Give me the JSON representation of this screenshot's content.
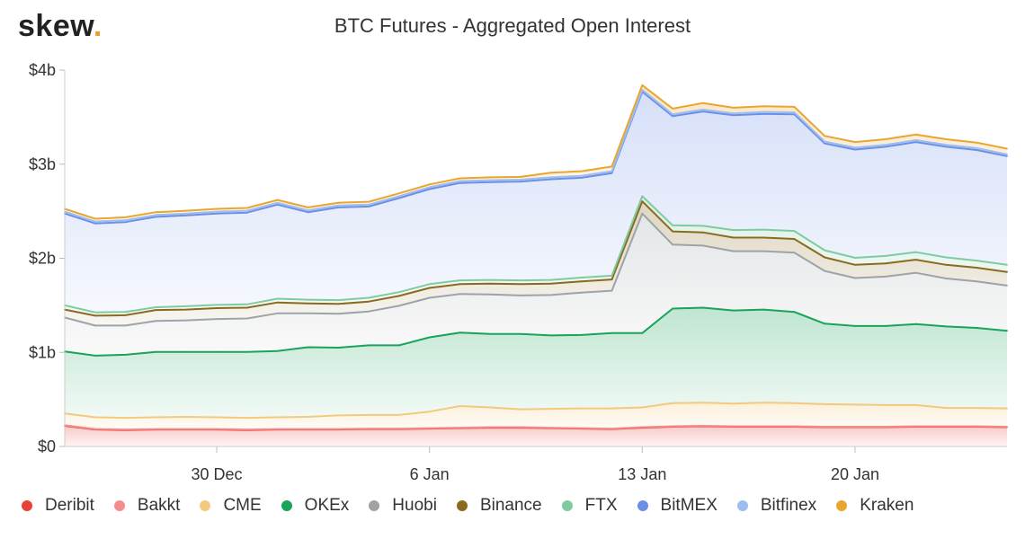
{
  "brand": {
    "name": "skew",
    "dot": "."
  },
  "chart_data": {
    "type": "area",
    "stacked": true,
    "title": "BTC Futures - Aggregated Open Interest",
    "xlabel": "",
    "ylabel": "",
    "ylim": [
      0,
      4000000000
    ],
    "y_ticks": [
      {
        "value": 0,
        "label": "$0"
      },
      {
        "value": 1000000000,
        "label": "$1b"
      },
      {
        "value": 2000000000,
        "label": "$2b"
      },
      {
        "value": 3000000000,
        "label": "$3b"
      },
      {
        "value": 4000000000,
        "label": "$4b"
      }
    ],
    "x_ticks": [
      {
        "date": "2019-12-30",
        "label": "30 Dec"
      },
      {
        "date": "2020-01-06",
        "label": "6 Jan"
      },
      {
        "date": "2020-01-13",
        "label": "13 Jan"
      },
      {
        "date": "2020-01-20",
        "label": "20 Jan"
      }
    ],
    "x": [
      "2019-12-25",
      "2019-12-26",
      "2019-12-27",
      "2019-12-28",
      "2019-12-29",
      "2019-12-30",
      "2019-12-31",
      "2020-01-01",
      "2020-01-02",
      "2020-01-03",
      "2020-01-04",
      "2020-01-05",
      "2020-01-06",
      "2020-01-07",
      "2020-01-08",
      "2020-01-09",
      "2020-01-10",
      "2020-01-11",
      "2020-01-12",
      "2020-01-13",
      "2020-01-14",
      "2020-01-15",
      "2020-01-16",
      "2020-01-17",
      "2020-01-18",
      "2020-01-19",
      "2020-01-20",
      "2020-01-21",
      "2020-01-22",
      "2020-01-23",
      "2020-01-24",
      "2020-01-25"
    ],
    "grid": false,
    "legend_position": "bottom-left",
    "series": [
      {
        "name": "Deribit",
        "color": "#e8413a",
        "values": [
          220,
          180,
          175,
          180,
          180,
          180,
          175,
          180,
          180,
          180,
          185,
          185,
          190,
          195,
          200,
          200,
          195,
          190,
          185,
          200,
          210,
          215,
          210,
          210,
          210,
          205,
          205,
          205,
          210,
          210,
          210,
          205
        ]
      },
      {
        "name": "Bakkt",
        "color": "#f48c8c",
        "values": [
          5,
          5,
          5,
          5,
          5,
          5,
          5,
          5,
          5,
          5,
          5,
          5,
          5,
          5,
          5,
          5,
          5,
          5,
          5,
          5,
          5,
          5,
          5,
          5,
          5,
          5,
          5,
          5,
          5,
          5,
          5,
          5
        ]
      },
      {
        "name": "CME",
        "color": "#f2c97d",
        "values": [
          125,
          125,
          125,
          125,
          130,
          125,
          125,
          125,
          130,
          145,
          145,
          145,
          175,
          230,
          210,
          190,
          200,
          210,
          215,
          210,
          245,
          245,
          240,
          250,
          245,
          240,
          235,
          230,
          225,
          195,
          195,
          195
        ]
      },
      {
        "name": "OKEx",
        "color": "#1aa35a",
        "values": [
          660,
          655,
          670,
          695,
          690,
          695,
          700,
          705,
          740,
          720,
          740,
          740,
          790,
          780,
          780,
          800,
          780,
          780,
          800,
          790,
          1005,
          1010,
          990,
          990,
          970,
          855,
          835,
          840,
          860,
          865,
          850,
          825
        ]
      },
      {
        "name": "Huobi",
        "color": "#9ea3a8",
        "values": [
          360,
          320,
          310,
          330,
          335,
          350,
          355,
          400,
          360,
          360,
          360,
          420,
          420,
          410,
          420,
          410,
          430,
          450,
          450,
          1270,
          680,
          660,
          630,
          620,
          630,
          560,
          510,
          525,
          545,
          510,
          495,
          480
        ]
      },
      {
        "name": "Binance",
        "color": "#8a6a1e",
        "values": [
          85,
          105,
          110,
          115,
          115,
          115,
          115,
          115,
          105,
          105,
          105,
          105,
          105,
          105,
          115,
          120,
          120,
          120,
          120,
          130,
          140,
          140,
          145,
          145,
          145,
          145,
          140,
          140,
          140,
          145,
          145,
          145
        ]
      },
      {
        "name": "FTX",
        "color": "#7fcba1",
        "values": [
          45,
          35,
          35,
          30,
          35,
          35,
          35,
          40,
          40,
          40,
          40,
          40,
          40,
          40,
          40,
          40,
          40,
          40,
          40,
          55,
          65,
          70,
          80,
          85,
          85,
          75,
          75,
          80,
          80,
          80,
          75,
          75
        ]
      },
      {
        "name": "BitMEX",
        "color": "#6b8ee6",
        "values": [
          975,
          945,
          955,
          960,
          965,
          970,
          975,
          1000,
          930,
          985,
          970,
          1000,
          1010,
          1035,
          1040,
          1050,
          1070,
          1060,
          1090,
          1110,
          1160,
          1215,
          1220,
          1230,
          1240,
          1135,
          1150,
          1160,
          1170,
          1175,
          1175,
          1155
        ]
      },
      {
        "name": "Bitfinex",
        "color": "#9dbdf0",
        "values": [
          20,
          20,
          20,
          20,
          20,
          20,
          20,
          20,
          20,
          20,
          20,
          20,
          20,
          20,
          20,
          20,
          20,
          20,
          20,
          20,
          20,
          20,
          20,
          20,
          20,
          20,
          20,
          20,
          20,
          20,
          20,
          20
        ]
      },
      {
        "name": "Kraken",
        "color": "#eaa52f",
        "values": [
          30,
          30,
          30,
          30,
          30,
          30,
          30,
          30,
          30,
          30,
          30,
          30,
          30,
          30,
          30,
          30,
          50,
          50,
          50,
          50,
          60,
          70,
          60,
          60,
          60,
          60,
          60,
          60,
          60,
          60,
          60,
          60
        ]
      }
    ]
  }
}
